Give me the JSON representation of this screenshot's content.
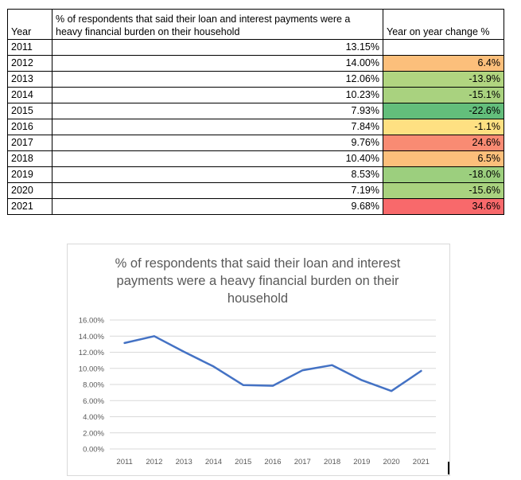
{
  "table": {
    "headers": {
      "year": "Year",
      "pct": "% of respondents that said their loan and interest payments were a heavy financial burden on their household",
      "change": "Year on year change %"
    },
    "rows": [
      {
        "year": "2011",
        "pct": "13.15%",
        "change": "",
        "color": "#ffffff"
      },
      {
        "year": "2012",
        "pct": "14.00%",
        "change": "6.4%",
        "color": "#fcbf7b"
      },
      {
        "year": "2013",
        "pct": "12.06%",
        "change": "-13.9%",
        "color": "#b1d580"
      },
      {
        "year": "2014",
        "pct": "10.23%",
        "change": "-15.1%",
        "color": "#a9d27f"
      },
      {
        "year": "2015",
        "pct": "7.93%",
        "change": "-22.6%",
        "color": "#63be7b"
      },
      {
        "year": "2016",
        "pct": "7.84%",
        "change": "-1.1%",
        "color": "#fee082"
      },
      {
        "year": "2017",
        "pct": "9.76%",
        "change": "24.6%",
        "color": "#f98b73"
      },
      {
        "year": "2018",
        "pct": "10.40%",
        "change": "6.5%",
        "color": "#fcbf7b"
      },
      {
        "year": "2019",
        "pct": "8.53%",
        "change": "-18.0%",
        "color": "#9ccf7e"
      },
      {
        "year": "2020",
        "pct": "7.19%",
        "change": "-15.6%",
        "color": "#a9d27f"
      },
      {
        "year": "2021",
        "pct": "9.68%",
        "change": "34.6%",
        "color": "#f8696b"
      }
    ]
  },
  "chart_data": {
    "type": "line",
    "title": "% of respondents that said their loan and interest payments were a heavy financial burden on their household",
    "title_lines": [
      "% of respondents that said their loan and interest",
      "payments were a heavy financial burden on their",
      "household"
    ],
    "categories": [
      "2011",
      "2012",
      "2013",
      "2014",
      "2015",
      "2016",
      "2017",
      "2018",
      "2019",
      "2020",
      "2021"
    ],
    "series": [
      {
        "values": [
          13.15,
          14.0,
          12.06,
          10.23,
          7.93,
          7.84,
          9.76,
          10.4,
          8.53,
          7.19,
          9.68
        ],
        "color": "#4472c4"
      }
    ],
    "ylim": [
      0,
      16
    ],
    "yticks": [
      "0.00%",
      "2.00%",
      "4.00%",
      "6.00%",
      "8.00%",
      "10.00%",
      "12.00%",
      "14.00%",
      "16.00%"
    ],
    "grid": true,
    "legend": "none"
  }
}
